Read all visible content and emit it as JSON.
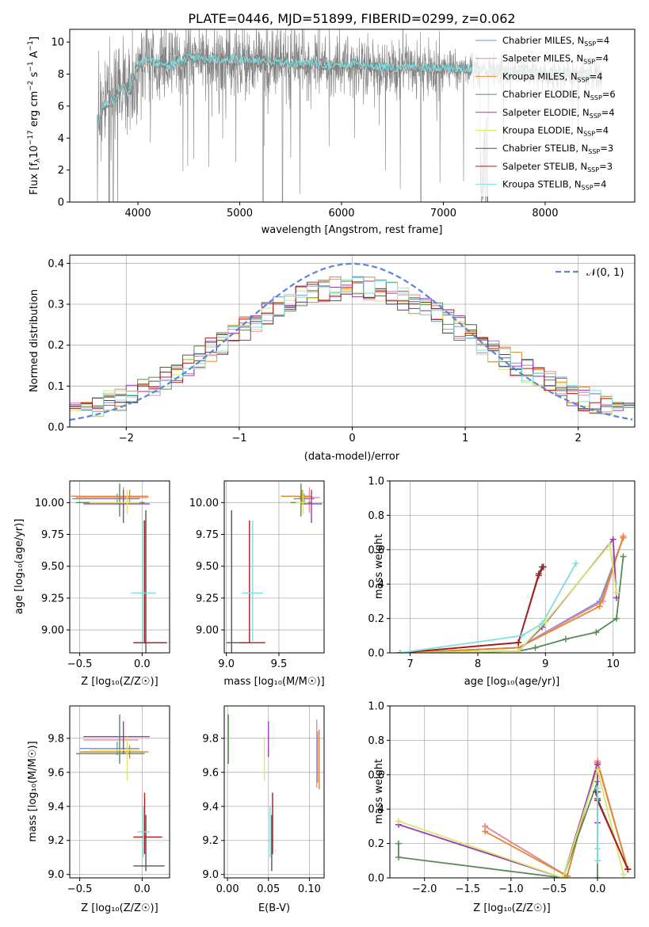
{
  "colors": {
    "chabrier_miles": "#7b8fd4",
    "salpeter_miles": "#e88a9a",
    "kroupa_miles": "#e0882a",
    "chabrier_elodie": "#5a8a5a",
    "salpeter_elodie": "#9a3bb5",
    "kroupa_elodie": "#d8e86a",
    "chabrier_stelib": "#555555",
    "salpeter_stelib": "#b01a1a",
    "kroupa_stelib": "#7fdfe0",
    "data": "#808080",
    "gauss": "#5b84d6"
  },
  "chart_data": [
    {
      "id": "spectrum",
      "type": "line",
      "title": "PLATE=0446, MJD=51899, FIBERID=0299, z=0.062",
      "xlabel": "wavelength [Angstrom, rest frame]",
      "ylabel": "Flux [f_λ 10^-17 erg cm^-2 s^-1 A^-1]",
      "xlim": [
        3330,
        8880
      ],
      "ylim": [
        0,
        10.8
      ],
      "xticks": [
        "4000",
        "5000",
        "6000",
        "7000",
        "8000"
      ],
      "yticks": [
        "0",
        "2",
        "4",
        "6",
        "8",
        "10"
      ],
      "legend_position": "top-right",
      "series": [
        {
          "name": "Chabrier MILES, N_SSP=4",
          "key": "chabrier_miles"
        },
        {
          "name": "Salpeter MILES, N_SSP=4",
          "key": "salpeter_miles"
        },
        {
          "name": "Kroupa MILES, N_SSP=4",
          "key": "kroupa_miles"
        },
        {
          "name": "Chabrier ELODIE, N_SSP=6",
          "key": "chabrier_elodie"
        },
        {
          "name": "Salpeter ELODIE, N_SSP=4",
          "key": "salpeter_elodie"
        },
        {
          "name": "Kroupa ELODIE, N_SSP=4",
          "key": "kroupa_elodie"
        },
        {
          "name": "Chabrier STELIB, N_SSP=3",
          "key": "chabrier_stelib"
        },
        {
          "name": "Salpeter STELIB, N_SSP=3",
          "key": "salpeter_stelib"
        },
        {
          "name": "Kroupa STELIB, N_SSP=4",
          "key": "kroupa_stelib"
        }
      ],
      "continuum": {
        "x": [
          3600,
          3650,
          3700,
          3750,
          3800,
          3850,
          3900,
          3950,
          4000,
          4100,
          4200,
          4300,
          4400,
          4500,
          4600,
          4800,
          5000,
          5200,
          5400,
          5600,
          5800,
          6000,
          6200,
          6400,
          6600,
          6800,
          7000,
          7200,
          7400,
          7600,
          7800,
          8000,
          8200,
          8500
        ],
        "y": [
          4.6,
          5.8,
          6.2,
          6.3,
          6.7,
          7.4,
          6.8,
          7.6,
          8.6,
          8.9,
          8.7,
          8.5,
          8.8,
          9.0,
          9.0,
          8.9,
          8.9,
          8.8,
          8.7,
          8.7,
          8.6,
          8.6,
          8.6,
          8.4,
          8.4,
          8.4,
          8.4,
          8.3,
          8.3,
          8.1,
          8.2,
          8.0,
          8.0,
          7.9
        ]
      },
      "grid": false
    },
    {
      "id": "residuals",
      "type": "line",
      "xlabel": "(data-model)/error",
      "ylabel": "Normed distribution",
      "xlim": [
        -2.5,
        2.5
      ],
      "ylim": [
        0,
        0.42
      ],
      "xticks": [
        "−2",
        "−1",
        "0",
        "1",
        "2"
      ],
      "yticks": [
        "0.0",
        "0.1",
        "0.2",
        "0.3",
        "0.4"
      ],
      "legend_label": "𝒩(0, 1)",
      "legend_position": "top-right",
      "grid": true
    },
    {
      "id": "age_vs_Z",
      "type": "scatter",
      "xlabel": "Z [log₁₀(Z/Z☉)]",
      "ylabel": "age  [log₁₀(age/yr)]",
      "xlim": [
        -0.58,
        0.22
      ],
      "ylim": [
        8.82,
        10.17
      ],
      "xticks": [
        "−0.5",
        "0.0"
      ],
      "yticks": [
        "9.00",
        "9.25",
        "9.50",
        "9.75",
        "10.00"
      ],
      "grid": true,
      "points": [
        {
          "key": "chabrier_miles",
          "x": -0.2,
          "y": 10.03,
          "xerr": [
            0.36,
            0.18
          ],
          "yerr": [
            0.04,
            0.04
          ]
        },
        {
          "key": "salpeter_miles",
          "x": -0.15,
          "y": 10.04,
          "xerr": [
            0.38,
            0.2
          ],
          "yerr": [
            0.12,
            0.08
          ]
        },
        {
          "key": "kroupa_miles",
          "x": -0.1,
          "y": 10.05,
          "xerr": [
            0.47,
            0.15
          ],
          "yerr": [
            0.05,
            0.05
          ]
        },
        {
          "key": "chabrier_elodie",
          "x": -0.18,
          "y": 10.0,
          "xerr": [
            0.35,
            0.2
          ],
          "yerr": [
            0.11,
            0.15
          ]
        },
        {
          "key": "salpeter_elodie",
          "x": -0.15,
          "y": 9.99,
          "xerr": [
            0.32,
            0.21
          ],
          "yerr": [
            0.15,
            0.11
          ]
        },
        {
          "key": "kroupa_elodie",
          "x": -0.12,
          "y": 10.0,
          "xerr": [
            0.3,
            0.1
          ],
          "yerr": [
            0.09,
            0.1
          ]
        },
        {
          "key": "chabrier_stelib",
          "x": 0.03,
          "y": 8.9,
          "xerr": [
            0.1,
            0.15
          ],
          "yerr": [
            0.1,
            1.04
          ]
        },
        {
          "key": "salpeter_stelib",
          "x": 0.02,
          "y": 8.9,
          "xerr": [
            0.09,
            0.18
          ],
          "yerr": [
            0.0,
            0.96
          ]
        },
        {
          "key": "kroupa_stelib",
          "x": 0.01,
          "y": 9.29,
          "xerr": [
            0.1,
            0.1
          ],
          "yerr": [
            0.38,
            0.57
          ]
        }
      ]
    },
    {
      "id": "age_vs_mass",
      "type": "scatter",
      "xlabel": "mass [log₁₀(M/M☉)]",
      "xlim": [
        8.98,
        9.93
      ],
      "ylim": [
        8.82,
        10.17
      ],
      "xticks": [
        "9.0",
        "9.5"
      ],
      "yticks": [
        "9.00",
        "9.25",
        "9.50",
        "9.75",
        "10.00"
      ],
      "grid": true,
      "points": [
        {
          "key": "chabrier_miles",
          "x": 9.74,
          "y": 10.03,
          "xerr": [
            0.1,
            0.1
          ],
          "yerr": [
            0.04,
            0.04
          ]
        },
        {
          "key": "salpeter_miles",
          "x": 9.79,
          "y": 10.04,
          "xerr": [
            0.1,
            0.1
          ],
          "yerr": [
            0.12,
            0.08
          ]
        },
        {
          "key": "kroupa_miles",
          "x": 9.72,
          "y": 10.05,
          "xerr": [
            0.2,
            0.1
          ],
          "yerr": [
            0.05,
            0.05
          ]
        },
        {
          "key": "chabrier_elodie",
          "x": 9.71,
          "y": 10.0,
          "xerr": [
            0.1,
            0.1
          ],
          "yerr": [
            0.11,
            0.15
          ]
        },
        {
          "key": "salpeter_elodie",
          "x": 9.81,
          "y": 9.99,
          "xerr": [
            0.1,
            0.1
          ],
          "yerr": [
            0.15,
            0.11
          ]
        },
        {
          "key": "kroupa_elodie",
          "x": 9.73,
          "y": 10.0,
          "xerr": [
            0.07,
            0.05
          ],
          "yerr": [
            0.09,
            0.1
          ]
        },
        {
          "key": "chabrier_stelib",
          "x": 9.05,
          "y": 8.9,
          "xerr": [
            0.05,
            0.15
          ],
          "yerr": [
            0.1,
            1.04
          ]
        },
        {
          "key": "salpeter_stelib",
          "x": 9.22,
          "y": 8.9,
          "xerr": [
            0.1,
            0.15
          ],
          "yerr": [
            0.0,
            0.96
          ]
        },
        {
          "key": "kroupa_stelib",
          "x": 9.25,
          "y": 9.29,
          "xerr": [
            0.1,
            0.1
          ],
          "yerr": [
            0.38,
            0.57
          ]
        }
      ]
    },
    {
      "id": "weight_vs_age",
      "type": "line",
      "xlabel": "age  [log₁₀(age/yr)]",
      "ylabel": "mass weight",
      "xlim": [
        6.7,
        10.32
      ],
      "ylim": [
        0,
        1.0
      ],
      "xticks": [
        "7",
        "8",
        "9",
        "10"
      ],
      "yticks": [
        "0.0",
        "0.2",
        "0.4",
        "0.6",
        "0.8",
        "1.0"
      ],
      "grid": true,
      "series": [
        {
          "key": "chabrier_miles",
          "x": [
            6.85,
            8.6,
            9.8,
            10.15
          ],
          "y": [
            0.0,
            0.03,
            0.3,
            0.67
          ]
        },
        {
          "key": "salpeter_miles",
          "x": [
            6.85,
            8.6,
            9.85,
            10.15
          ],
          "y": [
            0.0,
            0.03,
            0.3,
            0.68
          ]
        },
        {
          "key": "kroupa_miles",
          "x": [
            6.85,
            8.6,
            9.8,
            10.15
          ],
          "y": [
            0.0,
            0.03,
            0.27,
            0.67
          ]
        },
        {
          "key": "chabrier_elodie",
          "x": [
            6.85,
            8.6,
            8.85,
            9.3,
            9.75,
            10.05,
            10.15
          ],
          "y": [
            0.0,
            0.01,
            0.03,
            0.08,
            0.12,
            0.2,
            0.56
          ]
        },
        {
          "key": "salpeter_elodie",
          "x": [
            6.85,
            8.6,
            8.95,
            10.0,
            10.05
          ],
          "y": [
            0.0,
            0.01,
            0.15,
            0.66,
            0.32
          ]
        },
        {
          "key": "kroupa_elodie",
          "x": [
            6.85,
            8.6,
            9.0,
            9.95,
            10.05
          ],
          "y": [
            0.0,
            0.01,
            0.18,
            0.63,
            0.35
          ]
        },
        {
          "key": "chabrier_stelib",
          "x": [
            6.85,
            8.6,
            8.9,
            8.95
          ],
          "y": [
            0.0,
            0.06,
            0.46,
            0.5
          ]
        },
        {
          "key": "salpeter_stelib",
          "x": [
            6.85,
            8.6,
            8.9,
            8.97
          ],
          "y": [
            0.0,
            0.06,
            0.45,
            0.5
          ]
        },
        {
          "key": "kroupa_stelib",
          "x": [
            6.85,
            8.65,
            8.95,
            9.45
          ],
          "y": [
            0.0,
            0.1,
            0.17,
            0.52
          ]
        }
      ]
    },
    {
      "id": "mass_vs_Z",
      "type": "scatter",
      "xlabel": "Z [log₁₀(Z/Z☉)]",
      "ylabel": "mass [log₁₀(M/M☉)]",
      "xlim": [
        -0.58,
        0.22
      ],
      "ylim": [
        8.98,
        9.99
      ],
      "xticks": [
        "−0.5",
        "0.0"
      ],
      "yticks": [
        "9.0",
        "9.2",
        "9.4",
        "9.6",
        "9.8"
      ],
      "grid": true,
      "points": [
        {
          "key": "chabrier_miles",
          "x": -0.2,
          "y": 9.74,
          "xerr": [
            0.3,
            0.18
          ],
          "yerr": [
            0.04,
            0.04
          ]
        },
        {
          "key": "salpeter_miles",
          "x": -0.15,
          "y": 9.79,
          "xerr": [
            0.32,
            0.12
          ],
          "yerr": [
            0.05,
            0.08
          ]
        },
        {
          "key": "kroupa_miles",
          "x": -0.1,
          "y": 9.72,
          "xerr": [
            0.4,
            0.15
          ],
          "yerr": [
            0.04,
            0.04
          ]
        },
        {
          "key": "chabrier_elodie",
          "x": -0.18,
          "y": 9.71,
          "xerr": [
            0.35,
            0.2
          ],
          "yerr": [
            0.06,
            0.23
          ]
        },
        {
          "key": "salpeter_elodie",
          "x": -0.15,
          "y": 9.81,
          "xerr": [
            0.32,
            0.21
          ],
          "yerr": [
            0.1,
            0.09
          ]
        },
        {
          "key": "kroupa_elodie",
          "x": -0.12,
          "y": 9.73,
          "xerr": [
            0.3,
            0.1
          ],
          "yerr": [
            0.18,
            0.08
          ]
        },
        {
          "key": "chabrier_stelib",
          "x": 0.03,
          "y": 9.05,
          "xerr": [
            0.1,
            0.15
          ],
          "yerr": [
            0.03,
            0.3
          ]
        },
        {
          "key": "salpeter_stelib",
          "x": 0.02,
          "y": 9.22,
          "xerr": [
            0.09,
            0.14
          ],
          "yerr": [
            0.1,
            0.26
          ]
        },
        {
          "key": "kroupa_stelib",
          "x": 0.01,
          "y": 9.25,
          "xerr": [
            0.05,
            0.05
          ],
          "yerr": [
            0.15,
            0.15
          ]
        }
      ]
    },
    {
      "id": "mass_vs_ebv",
      "type": "scatter",
      "xlabel": "E(B-V)",
      "xlim": [
        -0.004,
        0.118
      ],
      "ylim": [
        8.98,
        9.99
      ],
      "xticks": [
        "0.00",
        "0.05",
        "0.10"
      ],
      "yticks": [
        "9.0",
        "9.2",
        "9.4",
        "9.6",
        "9.8"
      ],
      "grid": true,
      "points": [
        {
          "key": "chabrier_miles",
          "x": 0.11,
          "y": 9.74,
          "yerr": [
            0.2,
            0.1
          ]
        },
        {
          "key": "salpeter_miles",
          "x": 0.109,
          "y": 9.79,
          "yerr": [
            0.28,
            0.12
          ]
        },
        {
          "key": "kroupa_miles",
          "x": 0.112,
          "y": 9.72,
          "yerr": [
            0.22,
            0.13
          ]
        },
        {
          "key": "chabrier_elodie",
          "x": 0.001,
          "y": 9.71,
          "yerr": [
            0.06,
            0.23
          ]
        },
        {
          "key": "salpeter_elodie",
          "x": 0.05,
          "y": 9.81,
          "yerr": [
            0.12,
            0.09
          ]
        },
        {
          "key": "kroupa_elodie",
          "x": 0.045,
          "y": 9.73,
          "yerr": [
            0.18,
            0.08
          ]
        },
        {
          "key": "chabrier_stelib",
          "x": 0.054,
          "y": 9.05,
          "yerr": [
            0.03,
            0.3
          ]
        },
        {
          "key": "salpeter_stelib",
          "x": 0.055,
          "y": 9.22,
          "yerr": [
            0.1,
            0.26
          ]
        },
        {
          "key": "kroupa_stelib",
          "x": 0.052,
          "y": 9.25,
          "yerr": [
            0.15,
            0.15
          ]
        }
      ]
    },
    {
      "id": "weight_vs_Z",
      "type": "line",
      "xlabel": "Z [log₁₀(Z/Z☉)]",
      "ylabel": "mass weight",
      "xlim": [
        -2.4,
        0.43
      ],
      "ylim": [
        0,
        1.0
      ],
      "xticks": [
        "−2.0",
        "−1.5",
        "−1.0",
        "−0.5",
        "0.0"
      ],
      "yticks": [
        "0.0",
        "0.2",
        "0.4",
        "0.6",
        "0.8",
        "1.0"
      ],
      "grid": true,
      "series": [
        {
          "key": "chabrier_miles",
          "x": [
            -1.3,
            -0.35,
            0.0,
            0.35
          ],
          "y": [
            0.3,
            0.01,
            0.67,
            0.05
          ]
        },
        {
          "key": "salpeter_miles",
          "x": [
            -1.3,
            -0.35,
            0.0,
            0.35
          ],
          "y": [
            0.3,
            0.01,
            0.68,
            0.05
          ]
        },
        {
          "key": "kroupa_miles",
          "x": [
            -1.3,
            -0.35,
            0.0,
            0.35
          ],
          "y": [
            0.27,
            0.01,
            0.67,
            0.05
          ]
        },
        {
          "key": "chabrier_elodie",
          "x": [
            -2.3,
            -2.3,
            -0.4,
            0.0,
            0.0
          ],
          "y": [
            0.2,
            0.12,
            0.0,
            0.56,
            0.0
          ]
        },
        {
          "key": "salpeter_elodie",
          "x": [
            -2.3,
            -0.4,
            0.0,
            0.0
          ],
          "y": [
            0.31,
            0.0,
            0.66,
            0.32
          ]
        },
        {
          "key": "kroupa_elodie",
          "x": [
            -2.3,
            -0.4,
            0.0,
            0.3
          ],
          "y": [
            0.33,
            0.0,
            0.63,
            0.02
          ]
        },
        {
          "key": "chabrier_stelib",
          "x": [
            -0.02,
            0.0,
            0.35
          ],
          "y": [
            0.5,
            0.46,
            0.05
          ]
        },
        {
          "key": "salpeter_stelib",
          "x": [
            0.0,
            0.0,
            0.35
          ],
          "y": [
            0.5,
            0.45,
            0.05
          ]
        },
        {
          "key": "kroupa_stelib",
          "x": [
            0.0,
            0.0,
            0.0
          ],
          "y": [
            0.52,
            0.17,
            0.1
          ]
        }
      ]
    }
  ]
}
